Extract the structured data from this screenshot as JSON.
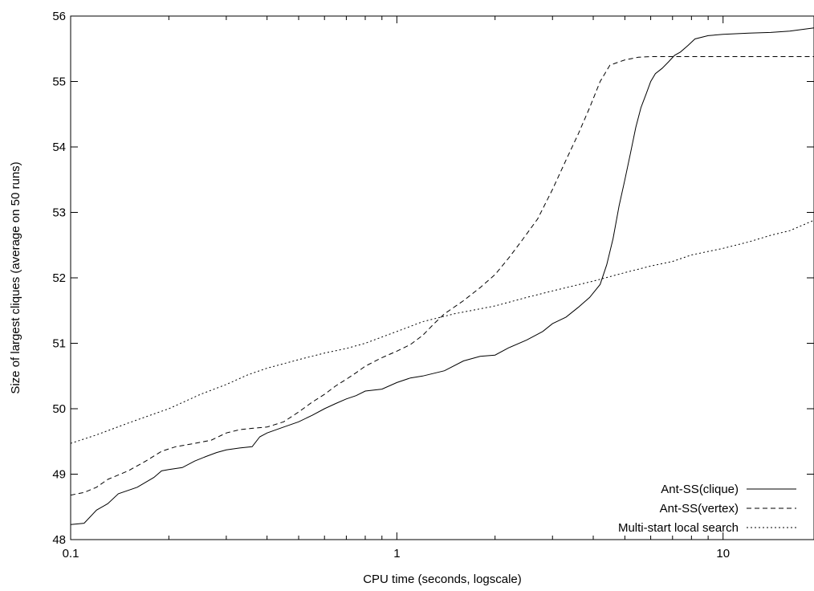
{
  "chart_data": {
    "type": "line",
    "title": "",
    "xlabel": "CPU time (seconds, logscale)",
    "ylabel": "Size of largest cliques (average on 50 runs)",
    "xscale": "log",
    "xlim": [
      0.1,
      19
    ],
    "ylim": [
      48,
      56
    ],
    "xticks": [
      {
        "value": 0.1,
        "label": "0.1"
      },
      {
        "value": 1,
        "label": "1"
      },
      {
        "value": 10,
        "label": "10"
      }
    ],
    "yticks": [
      {
        "value": 48,
        "label": "48"
      },
      {
        "value": 49,
        "label": "49"
      },
      {
        "value": 50,
        "label": "50"
      },
      {
        "value": 51,
        "label": "51"
      },
      {
        "value": 52,
        "label": "52"
      },
      {
        "value": 53,
        "label": "53"
      },
      {
        "value": 54,
        "label": "54"
      },
      {
        "value": 55,
        "label": "55"
      },
      {
        "value": 56,
        "label": "56"
      }
    ],
    "grid": false,
    "legend_position": "bottom-right",
    "series": [
      {
        "name": "Ant-SS(clique)",
        "style": "solid",
        "x": [
          0.1,
          0.11,
          0.12,
          0.13,
          0.14,
          0.16,
          0.18,
          0.19,
          0.2,
          0.22,
          0.24,
          0.26,
          0.28,
          0.3,
          0.33,
          0.36,
          0.38,
          0.4,
          0.45,
          0.5,
          0.55,
          0.6,
          0.65,
          0.7,
          0.75,
          0.8,
          0.9,
          1.0,
          1.1,
          1.2,
          1.4,
          1.6,
          1.8,
          2.0,
          2.2,
          2.5,
          2.8,
          3.0,
          3.3,
          3.6,
          3.9,
          4.2,
          4.4,
          4.6,
          4.8,
          5.0,
          5.2,
          5.4,
          5.6,
          5.8,
          6.0,
          6.2,
          6.5,
          6.8,
          7.1,
          7.4,
          7.8,
          8.2,
          9.0,
          10,
          12,
          14,
          16,
          19
        ],
        "values": [
          48.23,
          48.25,
          48.45,
          48.55,
          48.7,
          48.8,
          48.95,
          49.05,
          49.07,
          49.1,
          49.2,
          49.27,
          49.33,
          49.37,
          49.4,
          49.42,
          49.57,
          49.63,
          49.72,
          49.8,
          49.9,
          50.0,
          50.08,
          50.15,
          50.2,
          50.27,
          50.3,
          50.4,
          50.47,
          50.5,
          50.58,
          50.73,
          50.8,
          50.82,
          50.93,
          51.05,
          51.18,
          51.3,
          51.4,
          51.55,
          51.7,
          51.9,
          52.2,
          52.6,
          53.1,
          53.5,
          53.9,
          54.3,
          54.6,
          54.8,
          55.0,
          55.12,
          55.2,
          55.3,
          55.4,
          55.45,
          55.55,
          55.65,
          55.7,
          55.72,
          55.74,
          55.75,
          55.77,
          55.82
        ]
      },
      {
        "name": "Ant-SS(vertex)",
        "style": "dashed",
        "x": [
          0.1,
          0.11,
          0.12,
          0.13,
          0.15,
          0.17,
          0.19,
          0.21,
          0.24,
          0.27,
          0.3,
          0.33,
          0.36,
          0.4,
          0.45,
          0.5,
          0.55,
          0.6,
          0.65,
          0.7,
          0.75,
          0.8,
          0.9,
          1.0,
          1.1,
          1.2,
          1.3,
          1.4,
          1.6,
          1.8,
          2.0,
          2.2,
          2.4,
          2.7,
          3.0,
          3.3,
          3.6,
          3.9,
          4.2,
          4.5,
          5.0,
          5.5,
          6.0,
          7.0,
          8.0,
          10,
          14,
          19
        ],
        "values": [
          48.68,
          48.72,
          48.8,
          48.92,
          49.05,
          49.2,
          49.35,
          49.42,
          49.47,
          49.52,
          49.63,
          49.68,
          49.7,
          49.72,
          49.8,
          49.95,
          50.1,
          50.22,
          50.35,
          50.45,
          50.55,
          50.65,
          50.78,
          50.88,
          50.98,
          51.12,
          51.3,
          51.45,
          51.65,
          51.85,
          52.05,
          52.3,
          52.55,
          52.9,
          53.35,
          53.8,
          54.2,
          54.6,
          55.0,
          55.25,
          55.33,
          55.37,
          55.38,
          55.38,
          55.38,
          55.38,
          55.38,
          55.38
        ]
      },
      {
        "name": "Multi-start local search",
        "style": "dotted",
        "x": [
          0.1,
          0.12,
          0.15,
          0.18,
          0.2,
          0.25,
          0.3,
          0.35,
          0.4,
          0.5,
          0.6,
          0.7,
          0.8,
          1.0,
          1.2,
          1.5,
          2.0,
          2.5,
          3.0,
          4.0,
          5.0,
          6.0,
          7.0,
          8.0,
          10,
          12,
          14,
          16,
          19
        ],
        "values": [
          49.47,
          49.6,
          49.78,
          49.92,
          50.0,
          50.22,
          50.37,
          50.52,
          50.62,
          50.75,
          50.85,
          50.92,
          51.0,
          51.18,
          51.33,
          51.45,
          51.57,
          51.7,
          51.8,
          51.95,
          52.08,
          52.18,
          52.25,
          52.35,
          52.45,
          52.55,
          52.65,
          52.72,
          52.88
        ]
      }
    ]
  }
}
